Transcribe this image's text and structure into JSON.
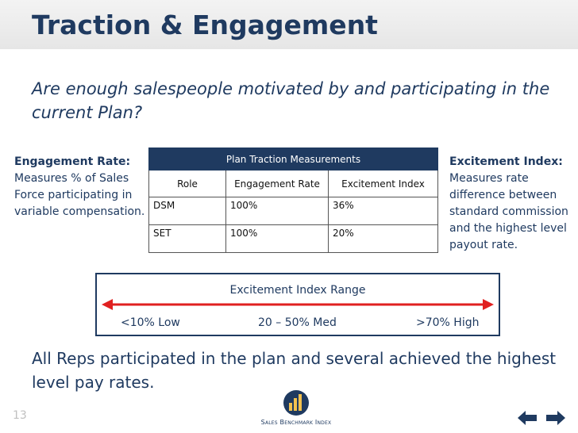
{
  "slide": {
    "title": "Traction & Engagement",
    "subtitle": "Are enough salespeople motivated by and participating in the current Plan?",
    "left_note": {
      "heading": "Engagement Rate:",
      "body": "Measures % of Sales Force participating in variable compensation."
    },
    "right_note": {
      "heading": "Excitement Index:",
      "body": "Measures rate difference between standard commission and the highest level payout rate."
    },
    "table": {
      "caption": "Plan Traction Measurements",
      "headers": [
        "Role",
        "Engagement Rate",
        "Excitement Index"
      ],
      "rows": [
        [
          "DSM",
          "100%",
          "36%"
        ],
        [
          "SET",
          "100%",
          "20%"
        ]
      ]
    },
    "range": {
      "title": "Excitement Index Range",
      "low": "<10% Low",
      "med": "20 – 50% Med",
      "high": ">70% High",
      "arrow_color": "#e02020"
    },
    "conclusion": "All Reps participated in the plan and several achieved the highest level pay rates.",
    "page_number": "13",
    "logo_text": "Sales Benchmark Index",
    "nav": {
      "prev_icon": "arrow-left-icon",
      "next_icon": "arrow-right-icon"
    },
    "colors": {
      "navy": "#1f3a60",
      "gray_bar": "#e9e9e9"
    }
  }
}
